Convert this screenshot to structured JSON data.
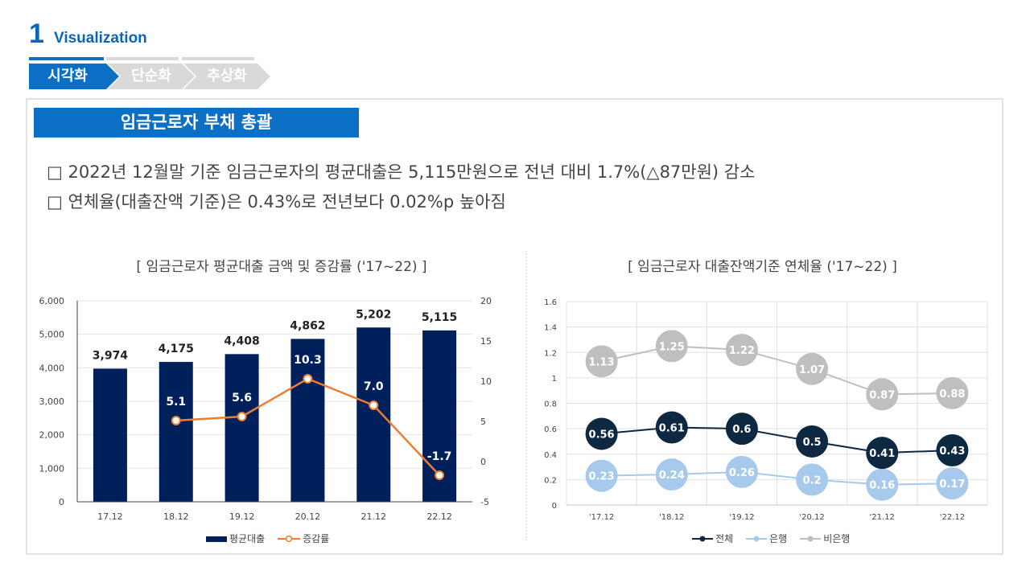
{
  "header": {
    "section_number": "1",
    "section_title": "Visualization",
    "steps": [
      {
        "label": "시각화",
        "active": true
      },
      {
        "label": "단순화",
        "active": false
      },
      {
        "label": "추상화",
        "active": false
      }
    ]
  },
  "card": {
    "title": "임금근로자 부채 총괄",
    "bullets": [
      "□ 2022년 12월말 기준 임금근로자의 평균대출은 5,115만원으로 전년 대비 1.7%(△87만원) 감소",
      "□ 연체율(대출잔액 기준)은 0.43%로 전년보다 0.02%p 높아짐"
    ]
  },
  "colors": {
    "brand": "#0b6fc6",
    "bar": "#00205b",
    "rate_line": "#ed7d31",
    "total": "#0e2841",
    "bank": "#a7c9eb",
    "nonbank": "#bfbfbf"
  },
  "chart_data": [
    {
      "type": "bar",
      "title": "[ 임금근로자 평균대출 금액 및 증감률 ('17~22) ]",
      "categories": [
        "17.12",
        "18.12",
        "19.12",
        "20.12",
        "21.12",
        "22.12"
      ],
      "series": [
        {
          "name": "평균대출",
          "kind": "bar",
          "axis": "left",
          "values": [
            3974,
            4175,
            4408,
            4862,
            5202,
            5115
          ],
          "labels": [
            "3,974",
            "4,175",
            "4,408",
            "4,862",
            "5,202",
            "5,115"
          ]
        },
        {
          "name": "증감률",
          "kind": "line",
          "axis": "right",
          "values": [
            null,
            5.1,
            5.6,
            10.3,
            7.0,
            -1.7
          ],
          "labels": [
            "",
            "5.1",
            "5.6",
            "10.3",
            "7.0",
            "-1.7"
          ]
        }
      ],
      "y_left": {
        "min": 0,
        "max": 6000,
        "ticks": [
          0,
          1000,
          2000,
          3000,
          4000,
          5000,
          6000
        ],
        "tick_labels": [
          "0",
          "1,000",
          "2,000",
          "3,000",
          "4,000",
          "5,000",
          "6,000"
        ]
      },
      "y_right": {
        "min": -5,
        "max": 20,
        "ticks": [
          -5,
          0,
          5,
          10,
          15,
          20
        ],
        "tick_labels": [
          "-5",
          "0",
          "5",
          "10",
          "15",
          "20"
        ]
      },
      "grid": true,
      "legend": "bottom",
      "legend_entries": [
        "평균대출",
        "증감률"
      ]
    },
    {
      "type": "line",
      "title": "[ 임금근로자 대출잔액기준 연체율 ('17~22) ]",
      "categories": [
        "'17.12",
        "'18.12",
        "'19.12",
        "'20.12",
        "'21.12",
        "'22.12"
      ],
      "series": [
        {
          "name": "전체",
          "values": [
            0.56,
            0.61,
            0.6,
            0.5,
            0.41,
            0.43
          ],
          "labels": [
            "0.56",
            "0.61",
            "0.6",
            "0.5",
            "0.41",
            "0.43"
          ]
        },
        {
          "name": "은행",
          "values": [
            0.23,
            0.24,
            0.26,
            0.2,
            0.16,
            0.17
          ],
          "labels": [
            "0.23",
            "0.24",
            "0.26",
            "0.2",
            "0.16",
            "0.17"
          ]
        },
        {
          "name": "비은행",
          "values": [
            1.13,
            1.25,
            1.22,
            1.07,
            0.87,
            0.88
          ],
          "labels": [
            "1.13",
            "1.25",
            "1.22",
            "1.07",
            "0.87",
            "0.88"
          ]
        }
      ],
      "y": {
        "min": 0,
        "max": 1.6,
        "ticks": [
          0,
          0.2,
          0.4,
          0.6,
          0.8,
          1,
          1.2,
          1.4,
          1.6
        ],
        "tick_labels": [
          "0",
          "0.2",
          "0.4",
          "0.6",
          "0.8",
          "1",
          "1.2",
          "1.4",
          "1.6"
        ]
      },
      "grid": true,
      "legend": "bottom",
      "legend_entries": [
        "전체",
        "은행",
        "비은행"
      ]
    }
  ]
}
